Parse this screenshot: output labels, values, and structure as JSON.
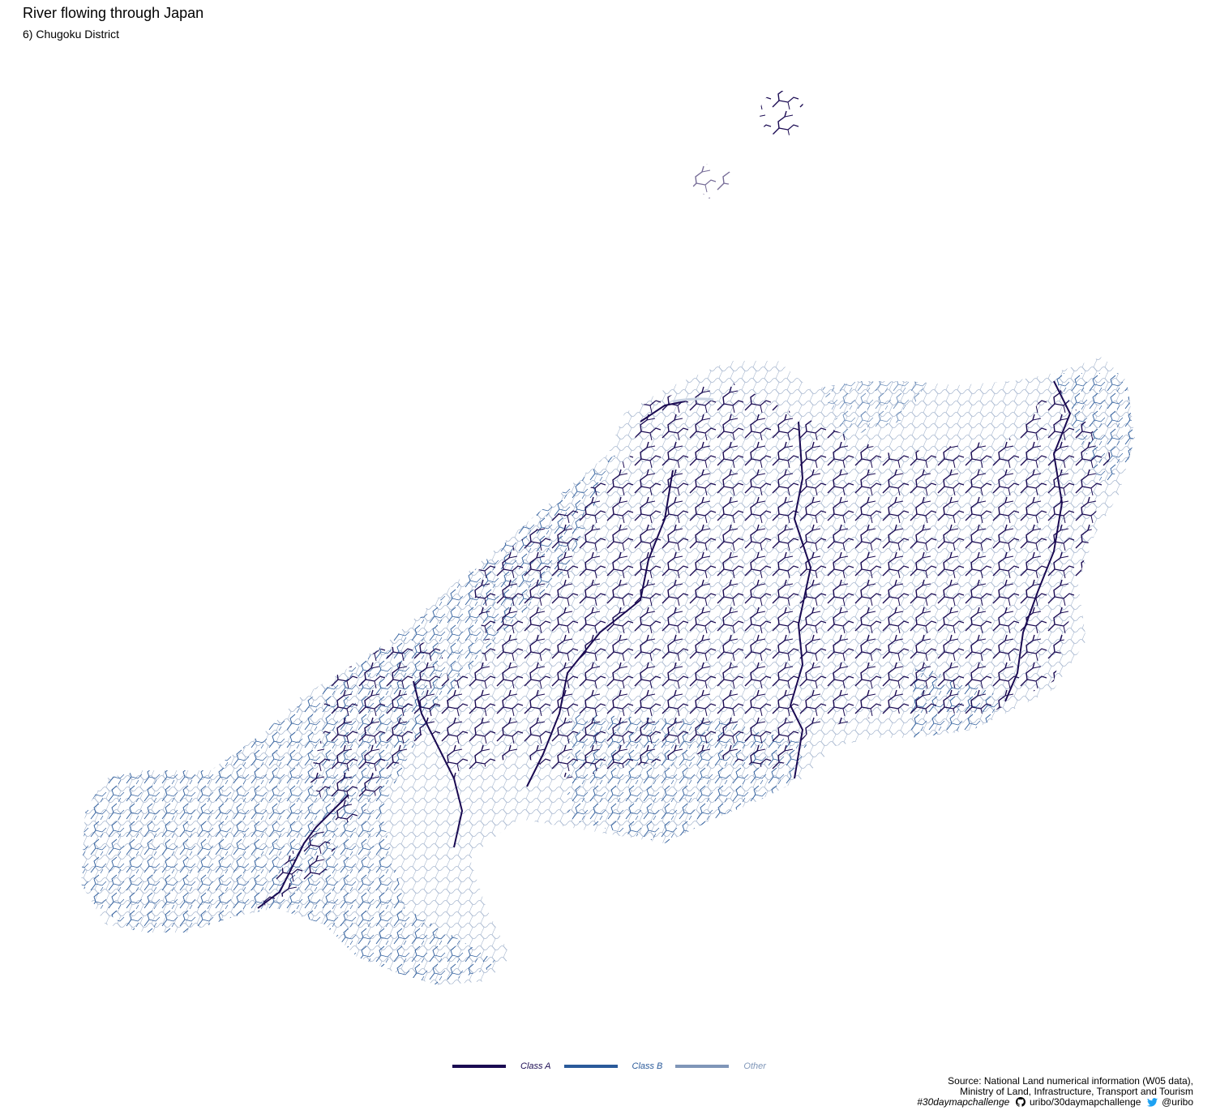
{
  "header": {
    "title": "River flowing through Japan",
    "subtitle": "6) Chugoku District"
  },
  "legend": {
    "items": [
      {
        "label": "Class A",
        "color": "#1a0a52"
      },
      {
        "label": "Class B",
        "color": "#2a5a9a"
      },
      {
        "label": "Other",
        "color": "#7f96b8"
      }
    ]
  },
  "caption": {
    "source_line1": "Source: National Land numerical information (W05 data),",
    "source_line2": "Ministry of Land, Infrastructure, Transport and Tourism",
    "hashtag": "#30daymapchallenge",
    "github": "uribo/30daymapchallenge",
    "twitter": "@uribo"
  },
  "icons": {
    "github": "github-icon",
    "twitter": "twitter-icon"
  }
}
